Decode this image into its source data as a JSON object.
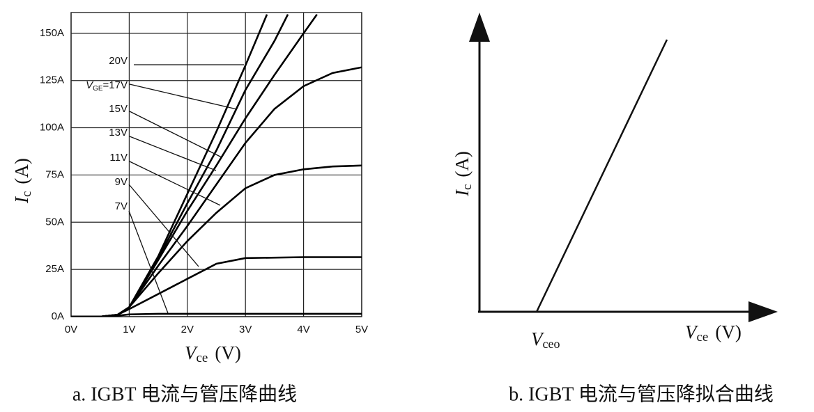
{
  "chart_data": [
    {
      "type": "line",
      "title": "a. IGBT 电流与管压降曲线",
      "xlabel": [
        "V",
        "ce",
        "(V)"
      ],
      "ylabel": [
        "I",
        "c",
        "(A)"
      ],
      "xlim": [
        0,
        5
      ],
      "ylim": [
        0,
        161
      ],
      "xticks": [
        {
          "value": 0,
          "label": "0V"
        },
        {
          "value": 1,
          "label": "1V"
        },
        {
          "value": 2,
          "label": "2V"
        },
        {
          "value": 3,
          "label": "3V"
        },
        {
          "value": 4,
          "label": "4V"
        },
        {
          "value": 5,
          "label": "5V"
        }
      ],
      "yticks": [
        {
          "value": 0,
          "label": "0A"
        },
        {
          "value": 25,
          "label": "25A"
        },
        {
          "value": 50,
          "label": "50A"
        },
        {
          "value": 75,
          "label": "75A"
        },
        {
          "value": 100,
          "label": "100A"
        },
        {
          "value": 125,
          "label": "125A"
        },
        {
          "value": 150,
          "label": "150A"
        }
      ],
      "grid": true,
      "series": [
        {
          "name": "7V",
          "color": "#000000",
          "x": [
            0,
            0.5,
            0.8,
            1,
            1.5,
            2,
            3,
            4,
            5
          ],
          "values": [
            0,
            0,
            0.5,
            1.2,
            1.5,
            1.5,
            1.5,
            1.5,
            1.5
          ]
        },
        {
          "name": "9V",
          "color": "#000000",
          "x": [
            0,
            0.5,
            0.8,
            1,
            1.5,
            2,
            2.5,
            3,
            4,
            5
          ],
          "values": [
            0,
            0,
            1,
            4,
            12,
            20,
            28,
            31,
            31.5,
            31.5
          ]
        },
        {
          "name": "11V",
          "color": "#000000",
          "x": [
            0,
            0.5,
            0.8,
            1,
            1.5,
            2,
            2.5,
            3,
            3.5,
            4,
            4.5,
            5
          ],
          "values": [
            0,
            0,
            1,
            5,
            23,
            40,
            55,
            68,
            75,
            78,
            79.5,
            80
          ]
        },
        {
          "name": "13V",
          "color": "#000000",
          "x": [
            0,
            0.5,
            0.8,
            1,
            1.5,
            2,
            2.5,
            3,
            3.5,
            4,
            4.5,
            5
          ],
          "values": [
            0,
            0,
            1,
            5,
            27,
            48,
            70,
            92,
            110,
            122,
            129,
            132
          ]
        },
        {
          "name": "15V",
          "color": "#000000",
          "x": [
            0,
            0.5,
            0.8,
            1,
            1.5,
            2,
            2.5,
            3,
            3.5,
            4,
            4.23
          ],
          "values": [
            0,
            0,
            1,
            5,
            30,
            56,
            80,
            105,
            128,
            150,
            160
          ]
        },
        {
          "name": "=17V",
          "prefix": [
            "V",
            "GE"
          ],
          "color": "#000000",
          "x": [
            0,
            0.5,
            0.8,
            1,
            1.5,
            2,
            2.5,
            3,
            3.5,
            3.73
          ],
          "values": [
            0,
            0,
            1,
            5,
            31,
            60,
            88,
            120,
            146,
            160
          ]
        },
        {
          "name": "20V",
          "color": "#000000",
          "x": [
            0,
            0.5,
            0.8,
            1,
            1.5,
            2,
            2.5,
            3,
            3.37
          ],
          "values": [
            0,
            0,
            1,
            5,
            32,
            65,
            98,
            133,
            160
          ]
        }
      ]
    },
    {
      "type": "schematic",
      "title": "b. IGBT 电流与管压降拟合曲线",
      "xlabel": [
        "V",
        "ce",
        "(V)"
      ],
      "ylabel": [
        "I",
        "c",
        "(A)"
      ],
      "annotation": [
        "V",
        "ceo"
      ]
    }
  ]
}
